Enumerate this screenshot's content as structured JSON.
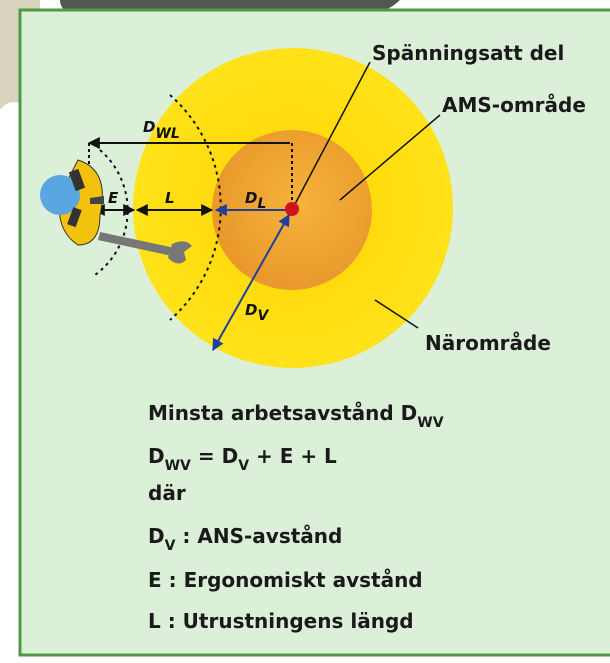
{
  "labels": {
    "live_part": "Spänningsatt del",
    "ams_zone": "AMS-område",
    "near_zone": "Närområde",
    "d_wl": {
      "text": "D",
      "sub": "WL"
    },
    "e": "E",
    "l": "L",
    "d_l": {
      "text": "D",
      "sub": "L"
    },
    "d_v": {
      "text": "D",
      "sub": "V"
    }
  },
  "legend": [
    [
      {
        "text": "Minsta arbetsavstånd D"
      },
      {
        "sub": "WV"
      }
    ],
    [
      {
        "text": "D"
      },
      {
        "sub": "WV"
      },
      {
        "text": " = D"
      },
      {
        "sub": "V"
      },
      {
        "text": " + E + L"
      }
    ],
    [
      {
        "text": "där"
      }
    ],
    [
      {
        "text": "D"
      },
      {
        "sub": "V"
      },
      {
        "text": " : ANS-avstånd"
      }
    ],
    [
      {
        "text": "E : Ergonomiskt avstånd"
      }
    ],
    [
      {
        "text": "L : Utrustningens längd"
      }
    ]
  ]
}
